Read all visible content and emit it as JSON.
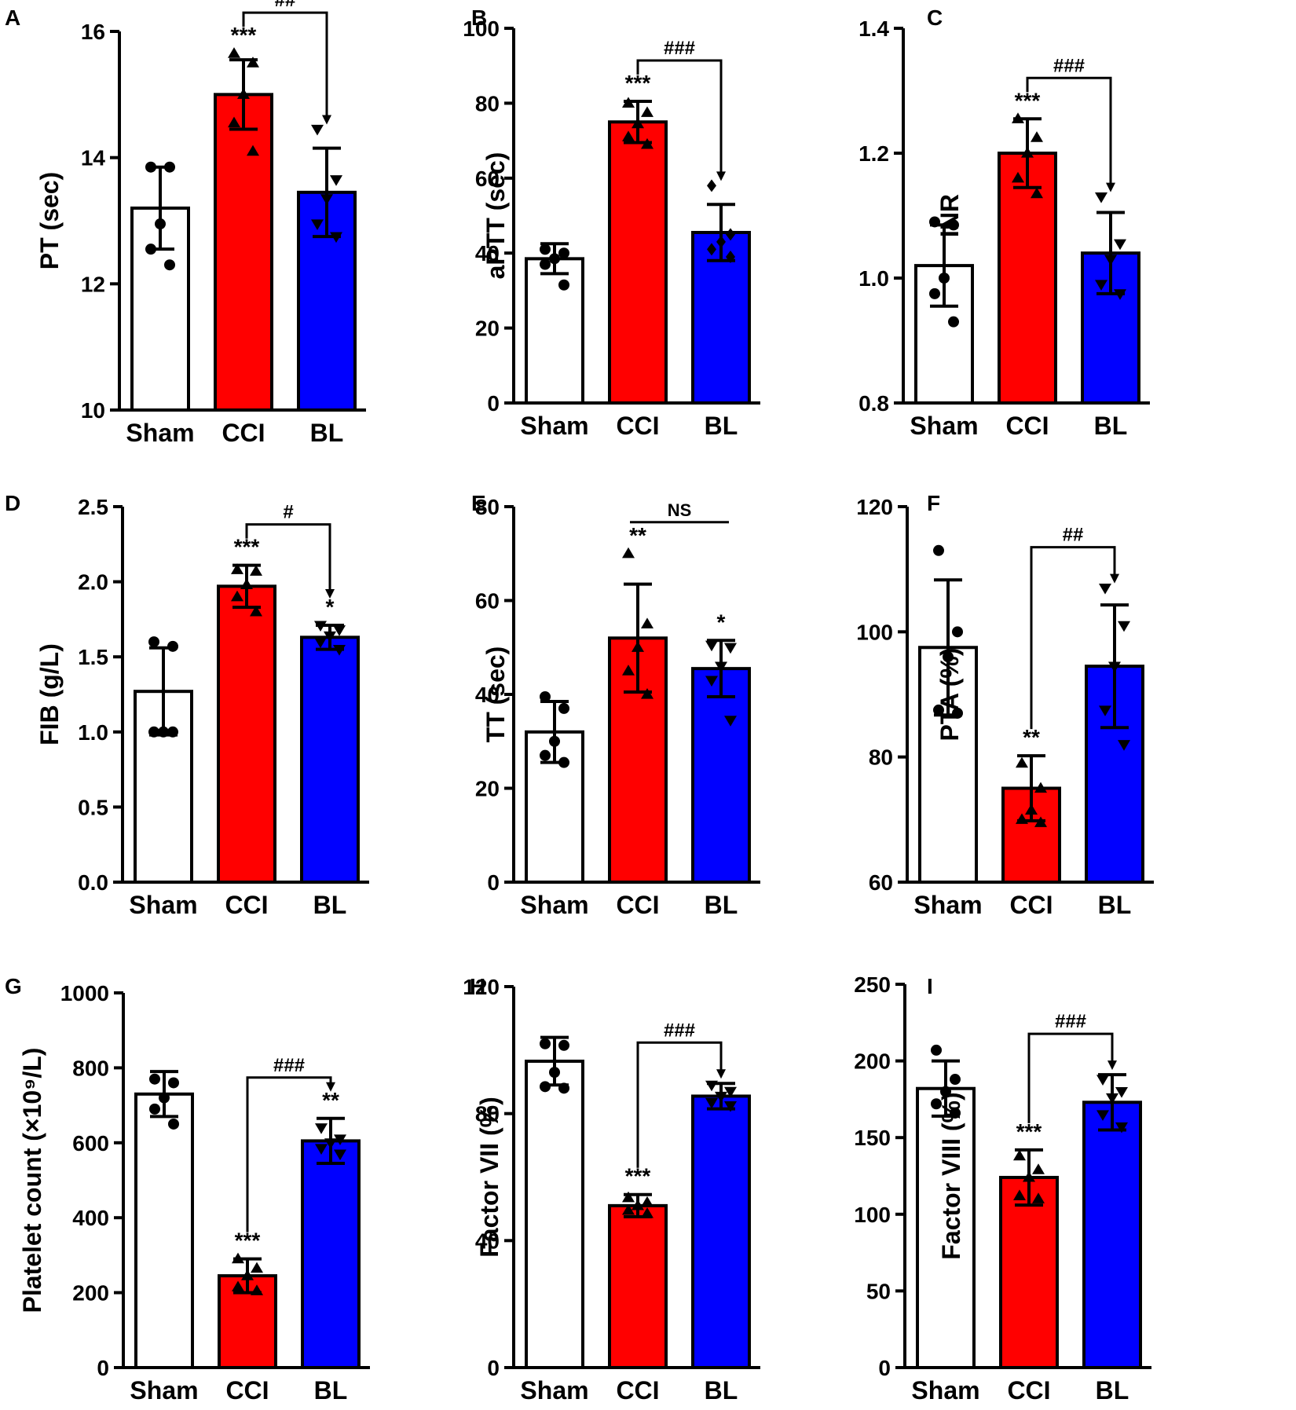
{
  "chart_data": [
    {
      "type": "bar",
      "panel": "A",
      "ylabel": "PT (sec)",
      "categories": [
        "Sham",
        "CCI",
        "BL"
      ],
      "values": [
        13.2,
        15.0,
        13.45
      ],
      "errors": [
        0.65,
        0.55,
        0.7
      ],
      "points": [
        [
          13.85,
          13.85,
          12.95,
          12.55,
          12.3
        ],
        [
          15.65,
          15.5,
          15.0,
          14.55,
          14.1
        ],
        [
          14.45,
          13.65,
          13.35,
          12.95,
          12.75
        ]
      ],
      "markers": [
        "circle",
        "triangle-up",
        "triangle-down"
      ],
      "colors": [
        "#ffffff",
        "#ff0000",
        "#0000ff"
      ],
      "ylim": [
        10,
        16
      ],
      "yticks": [
        10,
        12,
        14,
        16
      ],
      "tick_labels": [
        "10",
        "12",
        "14",
        "16"
      ],
      "sig": [
        "",
        "***",
        ""
      ],
      "bracket": {
        "from": 1,
        "to": 2,
        "label": "##",
        "arrow": true
      }
    },
    {
      "type": "bar",
      "panel": "B",
      "ylabel": "aPTT (sec)",
      "categories": [
        "Sham",
        "CCI",
        "BL"
      ],
      "values": [
        38.5,
        75.0,
        45.5
      ],
      "errors": [
        4.0,
        5.5,
        7.5
      ],
      "points": [
        [
          41.0,
          40.0,
          38.5,
          37.0,
          31.5
        ],
        [
          80.0,
          77.5,
          74.5,
          71.0,
          69.0
        ],
        [
          58.0,
          45.0,
          43.0,
          41.0,
          39.0
        ]
      ],
      "markers": [
        "circle",
        "triangle-up",
        "diamond"
      ],
      "colors": [
        "#ffffff",
        "#ff0000",
        "#0000ff"
      ],
      "ylim": [
        0,
        100
      ],
      "yticks": [
        0,
        20,
        40,
        60,
        80,
        100
      ],
      "tick_labels": [
        "0",
        "20",
        "40",
        "60",
        "80",
        "100"
      ],
      "sig": [
        "",
        "***",
        ""
      ],
      "bracket": {
        "from": 1,
        "to": 2,
        "label": "###",
        "arrow": true
      }
    },
    {
      "type": "bar",
      "panel": "C",
      "ylabel": "INR",
      "categories": [
        "Sham",
        "CCI",
        "BL"
      ],
      "values": [
        1.02,
        1.2,
        1.04
      ],
      "errors": [
        0.065,
        0.055,
        0.065
      ],
      "points": [
        [
          1.09,
          1.085,
          1.0,
          0.975,
          0.93
        ],
        [
          1.255,
          1.225,
          1.2,
          1.16,
          1.135
        ],
        [
          1.13,
          1.055,
          1.03,
          0.99,
          0.975
        ]
      ],
      "markers": [
        "circle",
        "triangle-up",
        "triangle-down"
      ],
      "colors": [
        "#ffffff",
        "#ff0000",
        "#0000ff"
      ],
      "ylim": [
        0.8,
        1.4
      ],
      "yticks": [
        0.8,
        1.0,
        1.2,
        1.4
      ],
      "tick_labels": [
        "0.8",
        "1.0",
        "1.2",
        "1.4"
      ],
      "sig": [
        "",
        "***",
        ""
      ],
      "bracket": {
        "from": 1,
        "to": 2,
        "label": "###",
        "arrow": true
      }
    },
    {
      "type": "bar",
      "panel": "D",
      "ylabel": "FIB (g/L)",
      "categories": [
        "Sham",
        "CCI",
        "BL"
      ],
      "values": [
        1.27,
        1.97,
        1.63
      ],
      "errors": [
        0.29,
        0.14,
        0.08
      ],
      "points": [
        [
          1.6,
          1.57,
          1.0,
          1.0,
          1.0
        ],
        [
          2.08,
          2.07,
          1.98,
          1.9,
          1.8
        ],
        [
          1.71,
          1.68,
          1.64,
          1.6,
          1.55
        ]
      ],
      "markers": [
        "circle",
        "triangle-up",
        "triangle-down"
      ],
      "colors": [
        "#ffffff",
        "#ff0000",
        "#0000ff"
      ],
      "ylim": [
        0,
        2.5
      ],
      "yticks": [
        0.0,
        0.5,
        1.0,
        1.5,
        2.0,
        2.5
      ],
      "tick_labels": [
        "0.0",
        "0.5",
        "1.0",
        "1.5",
        "2.0",
        "2.5"
      ],
      "sig": [
        "",
        "***",
        "*"
      ],
      "bracket": {
        "from": 1,
        "to": 2,
        "label": "#",
        "arrow": true
      }
    },
    {
      "type": "bar",
      "panel": "E",
      "ylabel": "TT (sec)",
      "categories": [
        "Sham",
        "CCI",
        "BL"
      ],
      "values": [
        32.0,
        52.0,
        45.5
      ],
      "errors": [
        6.5,
        11.5,
        6.0
      ],
      "points": [
        [
          39.5,
          37.0,
          30.0,
          27.0,
          25.5
        ],
        [
          70.0,
          55.0,
          50.0,
          45.0,
          40.0
        ],
        [
          50.5,
          50.0,
          46.0,
          43.0,
          34.5
        ]
      ],
      "markers": [
        "circle",
        "triangle-up",
        "triangle-down"
      ],
      "colors": [
        "#ffffff",
        "#ff0000",
        "#0000ff"
      ],
      "ylim": [
        0,
        80
      ],
      "yticks": [
        0,
        20,
        40,
        60,
        80
      ],
      "tick_labels": [
        "0",
        "20",
        "40",
        "60",
        "80"
      ],
      "sig": [
        "",
        "**",
        "*"
      ],
      "bracket": {
        "from": 1,
        "to": 2,
        "label": "NS",
        "arrow": false,
        "flat": true
      }
    },
    {
      "type": "bar",
      "panel": "F",
      "ylabel": "PTA (%)",
      "categories": [
        "Sham",
        "CCI",
        "BL"
      ],
      "values": [
        97.5,
        75.0,
        94.5
      ],
      "errors": [
        10.8,
        5.2,
        9.8
      ],
      "points": [
        [
          113.0,
          100.0,
          96.0,
          87.5,
          87.0
        ],
        [
          79.0,
          75.0,
          71.5,
          70.0,
          69.5
        ],
        [
          107.0,
          101.0,
          94.5,
          87.5,
          82.0
        ]
      ],
      "markers": [
        "circle",
        "triangle-up",
        "triangle-down"
      ],
      "colors": [
        "#ffffff",
        "#ff0000",
        "#0000ff"
      ],
      "ylim": [
        60,
        120
      ],
      "yticks": [
        60,
        80,
        100,
        120
      ],
      "tick_labels": [
        "60",
        "80",
        "100",
        "120"
      ],
      "sig": [
        "",
        "**",
        ""
      ],
      "bracket": {
        "from": 1,
        "to": 2,
        "label": "##",
        "arrow": true
      }
    },
    {
      "type": "bar",
      "panel": "G",
      "ylabel": "Platelet count (×10⁹/L)",
      "categories": [
        "Sham",
        "CCI",
        "BL"
      ],
      "values": [
        730,
        245,
        605
      ],
      "errors": [
        60,
        45,
        60
      ],
      "points": [
        [
          770,
          760,
          720,
          690,
          650
        ],
        [
          290,
          265,
          245,
          215,
          205
        ],
        [
          640,
          610,
          600,
          585,
          570
        ]
      ],
      "markers": [
        "circle",
        "triangle-up",
        "triangle-down"
      ],
      "colors": [
        "#ffffff",
        "#ff0000",
        "#0000ff"
      ],
      "ylim": [
        0,
        1000
      ],
      "yticks": [
        0,
        200,
        400,
        600,
        800,
        1000
      ],
      "tick_labels": [
        "0",
        "200",
        "400",
        "600",
        "800",
        "1000"
      ],
      "sig": [
        "",
        "***",
        "**"
      ],
      "bracket": {
        "from": 1,
        "to": 2,
        "label": "###",
        "arrow": true
      }
    },
    {
      "type": "bar",
      "panel": "H",
      "ylabel": "Factor VII (%)",
      "categories": [
        "Sham",
        "CCI",
        "BL"
      ],
      "values": [
        96.5,
        51.0,
        85.5
      ],
      "errors": [
        7.5,
        3.5,
        4.0
      ],
      "points": [
        [
          102.0,
          101.5,
          93.0,
          88.5,
          88.0
        ],
        [
          53.5,
          52.0,
          51.0,
          49.5,
          48.5
        ],
        [
          89.0,
          87.0,
          85.5,
          83.5,
          82.5
        ]
      ],
      "markers": [
        "circle",
        "triangle-up",
        "triangle-down"
      ],
      "colors": [
        "#ffffff",
        "#ff0000",
        "#0000ff"
      ],
      "ylim": [
        0,
        120
      ],
      "yticks": [
        0,
        40,
        80,
        120
      ],
      "tick_labels": [
        "0",
        "40",
        "80",
        "120"
      ],
      "sig": [
        "",
        "***",
        ""
      ],
      "bracket": {
        "from": 1,
        "to": 2,
        "label": "###",
        "arrow": true
      }
    },
    {
      "type": "bar",
      "panel": "I",
      "ylabel": "Factor VIII (%)",
      "categories": [
        "Sham",
        "CCI",
        "BL"
      ],
      "values": [
        182,
        124,
        173
      ],
      "errors": [
        18,
        18,
        18
      ],
      "points": [
        [
          207,
          188,
          180,
          172,
          166
        ],
        [
          138,
          129,
          124,
          112,
          110
        ],
        [
          188,
          180,
          176,
          165,
          157
        ]
      ],
      "markers": [
        "circle",
        "triangle-up",
        "triangle-down"
      ],
      "colors": [
        "#ffffff",
        "#ff0000",
        "#0000ff"
      ],
      "ylim": [
        0,
        250
      ],
      "yticks": [
        0,
        50,
        100,
        150,
        200,
        250
      ],
      "tick_labels": [
        "0",
        "50",
        "100",
        "150",
        "200",
        "250"
      ],
      "sig": [
        "",
        "***",
        ""
      ],
      "bracket": {
        "from": 1,
        "to": 2,
        "label": "###",
        "arrow": true
      }
    }
  ]
}
